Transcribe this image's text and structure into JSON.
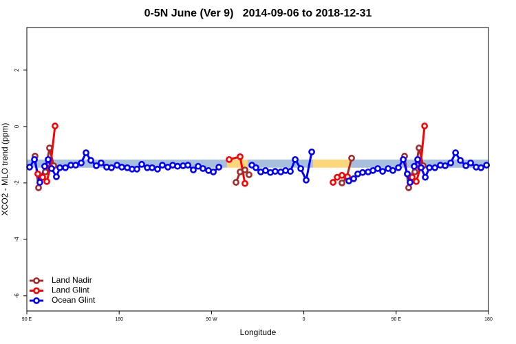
{
  "chart_data": {
    "type": "line",
    "title": "0-5N June (Ver 9)   2014-09-06 to 2018-12-31",
    "x_label": "Longitude",
    "y_label": "XCO2 - MLO trend (ppm)",
    "xlim": [
      90,
      540
    ],
    "xticks": [
      {
        "value": 90,
        "label": "90 E"
      },
      {
        "value": 180,
        "label": "180"
      },
      {
        "value": 270,
        "label": "90 W"
      },
      {
        "value": 360,
        "label": "0"
      },
      {
        "value": 450,
        "label": "90 E"
      },
      {
        "value": 540,
        "label": "180"
      }
    ],
    "ylim": [
      -6.54,
      3.51
    ],
    "yticks": [
      2,
      0,
      -2,
      -4,
      -6
    ],
    "legend": "bottomleft",
    "bands": [
      {
        "xlim": [
          90,
          285.2
        ],
        "ylim": [
          -1.46,
          -1.17
        ],
        "color": "#a8bfdc"
      },
      {
        "xlim": [
          285.2,
          305.3
        ],
        "ylim": [
          -1.46,
          -1.17
        ],
        "color": "#fbd67a"
      },
      {
        "xlim": [
          305.3,
          369.0
        ],
        "ylim": [
          -1.46,
          -1.17
        ],
        "color": "#a8bfdc"
      },
      {
        "xlim": [
          369.0,
          405.9
        ],
        "ylim": [
          -1.46,
          -1.17
        ],
        "color": "#fbd67a"
      },
      {
        "xlim": [
          405.9,
          540
        ],
        "ylim": [
          -1.46,
          -1.17
        ],
        "color": "#a8bfdc"
      }
    ],
    "series": [
      {
        "name": "Land Nadir",
        "color": "#a52a2a",
        "x": [
          98.0,
          101.4,
          108.1,
          112.1,
          116.2,
          200,
          293.9,
          297.9,
          302.6,
          306.6,
          350,
          397.2,
          401.9,
          406.6,
          430,
          458.2,
          462.2,
          468.3,
          472.3,
          476.3
        ],
        "values": [
          -1.05,
          -2.17,
          -1.61,
          -0.76,
          -1.39,
          null,
          -1.98,
          -1.61,
          -1.54,
          -1.71,
          null,
          -2.0,
          -1.8,
          -1.12,
          null,
          -1.05,
          -2.17,
          -1.61,
          -0.76,
          -1.39
        ]
      },
      {
        "name": "Land Glint",
        "color": "#ff0000",
        "x": [
          100.7,
          105.4,
          109.5,
          112.8,
          117.5,
          200,
          287.2,
          297.9,
          302.6,
          350,
          388.5,
          392.5,
          397.2,
          402.6,
          430,
          460.9,
          465.6,
          469.6,
          473.6,
          477.7
        ],
        "values": [
          -1.68,
          -1.8,
          -1.95,
          -1.46,
          0.02,
          null,
          -1.17,
          -1.07,
          -2.02,
          null,
          -1.98,
          -1.8,
          -1.73,
          -1.78,
          null,
          -1.68,
          -1.8,
          -1.95,
          -1.46,
          0.02
        ]
      },
      {
        "name": "Ocean Glint",
        "color": "#0000ff",
        "x": [
          92.7,
          97.4,
          102.7,
          107.4,
          110.8,
          114.1,
          118.8,
          122.2,
          127.6,
          132.9,
          137.6,
          143.0,
          147.7,
          152.4,
          157.7,
          162.4,
          167.8,
          172.5,
          177.9,
          182.6,
          187.9,
          192.6,
          197.3,
          202.0,
          207.4,
          212.1,
          217.4,
          222.1,
          227.5,
          232.2,
          236.9,
          242.3,
          247.0,
          252.3,
          257.0,
          261.7,
          267.1,
          271.8,
          277.2,
          290,
          309.4,
          313.3,
          318.0,
          322.7,
          327.4,
          332.1,
          337.5,
          342.2,
          346.9,
          351.6,
          357.0,
          362.3,
          367.7,
          385,
          403.9,
          408.6,
          412.6,
          417.3,
          422.7,
          427.4,
          432.1,
          436.8,
          442.2,
          446.8,
          452.2,
          456.9,
          460.9,
          463.6,
          467.6,
          471.0,
          474.3,
          478.4,
          482.4,
          487.8,
          493.1,
          497.8,
          503.2,
          507.9,
          512.6,
          518.0,
          522.6,
          528.0,
          532.7,
          538.1
        ],
        "values": [
          -1.44,
          -1.17,
          -1.98,
          -1.41,
          -1.17,
          -1.49,
          -1.78,
          -1.46,
          -1.46,
          -1.37,
          -1.37,
          -1.29,
          -0.93,
          -1.2,
          -1.39,
          -1.29,
          -1.44,
          -1.46,
          -1.37,
          -1.44,
          -1.46,
          -1.51,
          -1.51,
          -1.34,
          -1.46,
          -1.46,
          -1.51,
          -1.37,
          -1.44,
          -1.37,
          -1.41,
          -1.39,
          -1.37,
          -1.54,
          -1.41,
          -1.49,
          -1.56,
          -1.61,
          -1.44,
          null,
          -1.37,
          -1.46,
          -1.61,
          -1.56,
          -1.63,
          -1.59,
          -1.61,
          -1.56,
          -1.59,
          -1.17,
          -1.49,
          -1.9,
          -0.9,
          null,
          -1.93,
          -1.85,
          -1.68,
          -1.63,
          -1.61,
          -1.56,
          -1.49,
          -1.59,
          -1.49,
          -1.56,
          -1.46,
          -1.17,
          -1.68,
          -1.98,
          -1.41,
          -1.17,
          -1.46,
          -1.8,
          -1.46,
          -1.46,
          -1.37,
          -1.39,
          -1.29,
          -0.93,
          -1.2,
          -1.39,
          -1.29,
          -1.44,
          -1.46,
          -1.37
        ]
      }
    ]
  }
}
